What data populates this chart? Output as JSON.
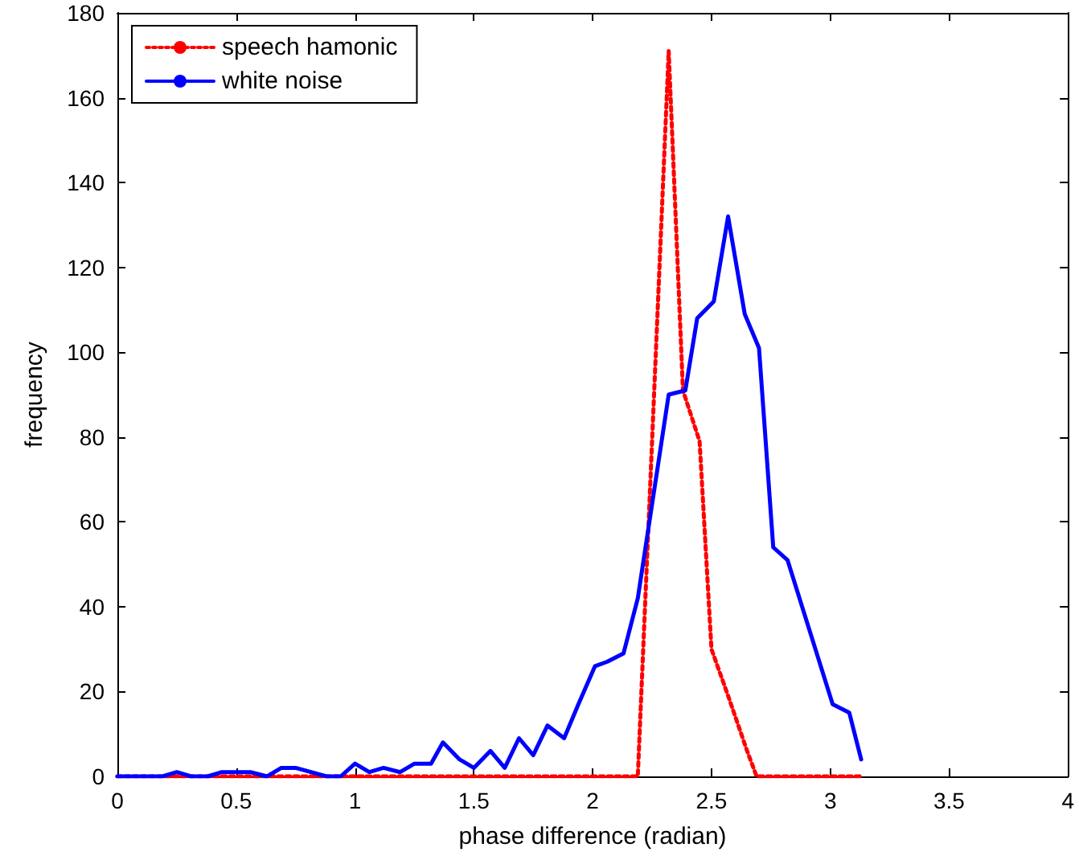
{
  "chart_data": {
    "type": "line",
    "xlabel": "phase difference (radian)",
    "ylabel": "frequency",
    "xlim": [
      0,
      4
    ],
    "xticks": [
      0,
      0.5,
      1,
      1.5,
      2,
      2.5,
      3,
      3.5,
      4
    ],
    "ylim": [
      0,
      180
    ],
    "yticks": [
      0,
      20,
      40,
      60,
      80,
      100,
      120,
      140,
      160,
      180
    ],
    "grid": false,
    "legend": "top left",
    "marker": "none",
    "series": [
      {
        "name": "speech hamonic",
        "color": "#ff0000",
        "line_style": "dotted",
        "x": [
          0,
          2.19,
          2.32,
          2.38,
          2.45,
          2.5,
          2.57,
          2.65,
          2.69,
          3.13
        ],
        "values": [
          0,
          0,
          171,
          91,
          79,
          30,
          19,
          6,
          0,
          0
        ]
      },
      {
        "name": "white noise",
        "color": "#0000ff",
        "line_style": "solid",
        "x": [
          0,
          0.19,
          0.25,
          0.31,
          0.38,
          0.44,
          0.56,
          0.63,
          0.69,
          0.75,
          0.88,
          0.94,
          1.0,
          1.06,
          1.12,
          1.19,
          1.25,
          1.32,
          1.37,
          1.44,
          1.5,
          1.57,
          1.63,
          1.69,
          1.75,
          1.81,
          1.88,
          1.94,
          2.01,
          2.06,
          2.13,
          2.19,
          2.32,
          2.39,
          2.44,
          2.51,
          2.57,
          2.64,
          2.7,
          2.76,
          2.82,
          3.01,
          3.08,
          3.13
        ],
        "values": [
          0,
          0,
          1,
          0,
          0,
          1,
          1,
          0,
          2,
          2,
          0,
          0,
          3,
          1,
          2,
          1,
          3,
          3,
          8,
          4,
          2,
          6,
          2,
          9,
          5,
          12,
          9,
          17,
          26,
          27,
          29,
          42,
          90,
          91,
          108,
          112,
          132,
          109,
          101,
          54,
          51,
          17,
          15,
          4
        ]
      }
    ]
  }
}
